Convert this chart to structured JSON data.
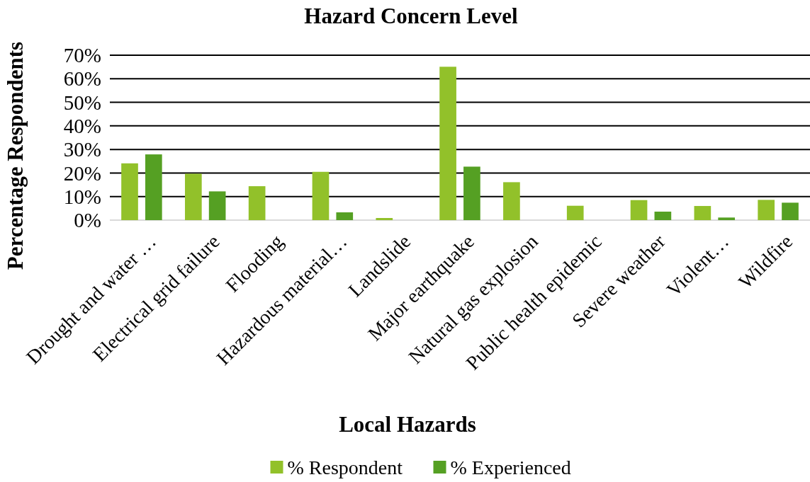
{
  "chart_data": {
    "type": "bar",
    "title": "Hazard Concern Level",
    "xlabel": "Local Hazards",
    "ylabel": "Percentage Respondents",
    "categories": [
      "Drought and water …",
      "Electrical grid failure",
      "Flooding",
      "Hazardous material…",
      "Landslide",
      "Major earthquake",
      "Natural gas explosion",
      "Public health epidemic",
      "Severe weather",
      "Violent…",
      "Wildfire"
    ],
    "series": [
      {
        "name": "% Respondent",
        "color": "#92c12a",
        "values": [
          24.1,
          19.7,
          14.4,
          20.5,
          0.9,
          65.1,
          16.1,
          6.1,
          8.5,
          6.0,
          8.6
        ]
      },
      {
        "name": "% Experienced",
        "color": "#55a023",
        "values": [
          27.9,
          12.2,
          null,
          3.3,
          null,
          22.7,
          null,
          null,
          3.6,
          1.1,
          7.4
        ]
      }
    ],
    "ylim": [
      0,
      70
    ],
    "yticks": [
      {
        "value": 0,
        "label": "0%"
      },
      {
        "value": 10,
        "label": "10%"
      },
      {
        "value": 20,
        "label": "20%"
      },
      {
        "value": 30,
        "label": "30%"
      },
      {
        "value": 40,
        "label": "40%"
      },
      {
        "value": 50,
        "label": "50%"
      },
      {
        "value": 60,
        "label": "60%"
      },
      {
        "value": 70,
        "label": "70%"
      }
    ],
    "grid": "y",
    "legend": "bottom"
  }
}
